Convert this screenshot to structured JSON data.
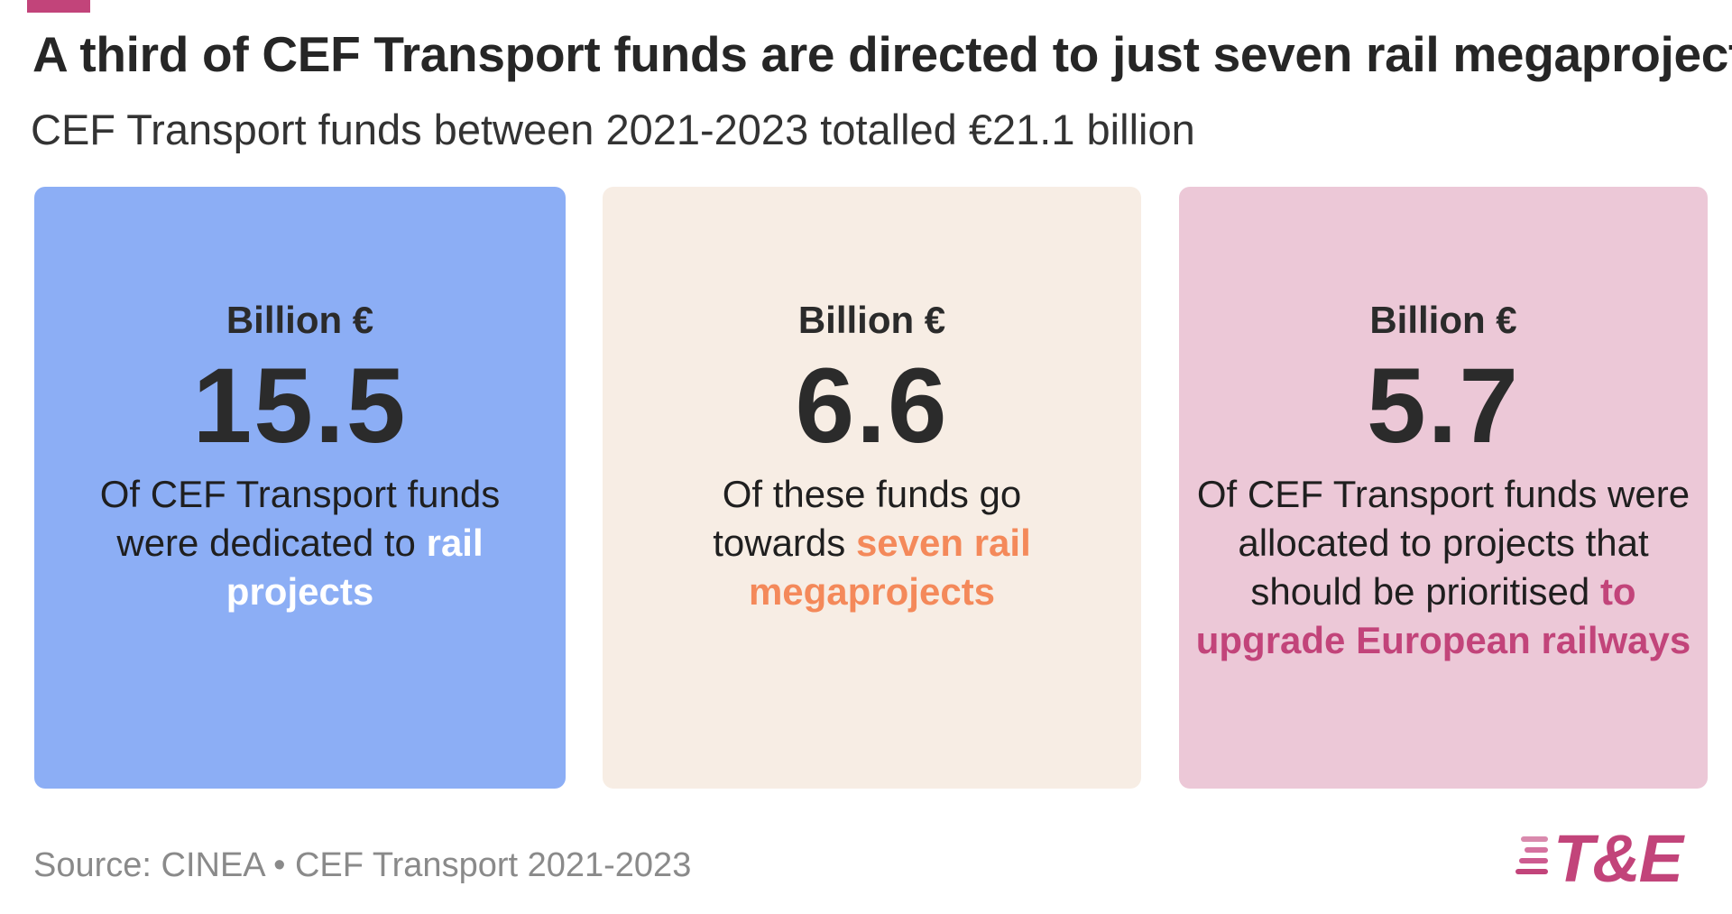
{
  "header": {
    "title": "A third of CEF Transport funds are directed to just seven rail megaprojects",
    "subtitle": "CEF Transport funds between 2021-2023 totalled €21.1 billion"
  },
  "colors": {
    "accent": "#c2447a",
    "card_1_bg": "#8caef5",
    "card_2_bg": "#f7ede4",
    "card_3_bg": "#ecc8d7",
    "card_1_highlight": "#ffffff",
    "card_2_highlight": "#f4895a",
    "card_3_highlight": "#c2447a"
  },
  "chart_data": {
    "type": "table",
    "title": "A third of CEF Transport funds are directed to just seven rail megaprojects",
    "subtitle": "CEF Transport funds between 2021-2023 totalled €21.1 billion",
    "unit": "Billion €",
    "total": 21.1,
    "cards": [
      {
        "unit": "Billion €",
        "value": "15.5",
        "text_before": "Of CEF Transport funds were dedicated to",
        "text_highlight": "rail projects"
      },
      {
        "unit": "Billion €",
        "value": "6.6",
        "text_before": "Of these funds go towards",
        "text_highlight": "seven rail megaprojects"
      },
      {
        "unit": "Billion €",
        "value": "5.7",
        "text_before": "Of CEF Transport funds were allocated to projects that should be prioritised",
        "text_highlight": "to upgrade European railways"
      }
    ]
  },
  "footer": {
    "source": "Source: CINEA • CEF Transport 2021-2023",
    "logo_text": "T&E"
  }
}
